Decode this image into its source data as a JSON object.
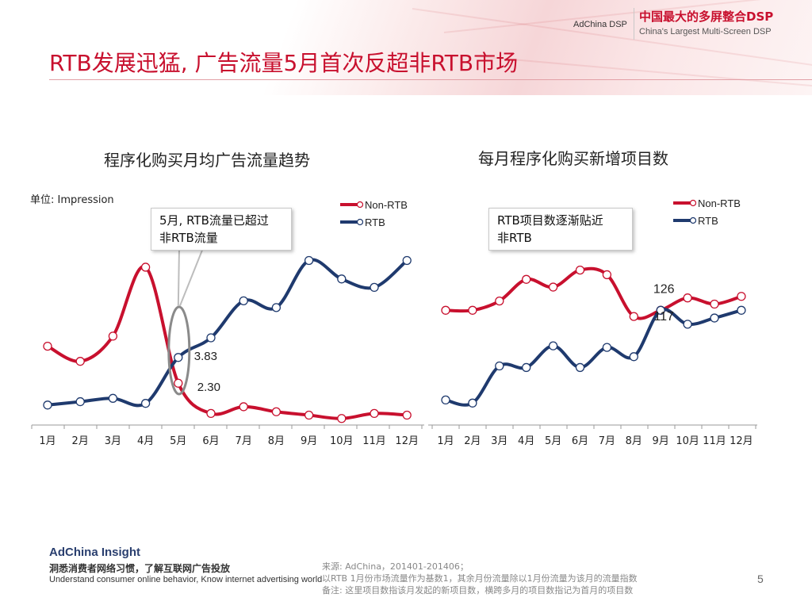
{
  "header": {
    "brand": "AdChina DSP",
    "tagline_cn": "中国最大的多屏整合DSP",
    "tagline_en": "China's Largest Multi-Screen DSP"
  },
  "title": "RTB发展迅猛, 广告流量5月首次反超非RTB市场",
  "footer": {
    "brand": "AdChina Insight",
    "slogan_cn": "洞悉消费者网络习惯，了解互联网广告投放",
    "slogan_en": "Understand consumer online behavior, Know internet advertising world",
    "source_lines": [
      "来源: AdChina，201401-201406；",
      "以RTB 1月份市场流量作为基数1，其余月份流量除以1月份流量为该月的流量指数",
      "备注: 这里项目数指该月发起的新项目数，横跨多月的项目数指记为首月的项目数"
    ],
    "page_number": "5"
  },
  "colors": {
    "non_rtb": "#c8102e",
    "rtb": "#1f3a6e",
    "accent": "#c8102e"
  },
  "chart_data": [
    {
      "type": "line",
      "title": "程序化购买月均广告流量趋势",
      "unit_label": "单位: Impression",
      "categories": [
        "1月",
        "2月",
        "3月",
        "4月",
        "5月",
        "6月",
        "7月",
        "8月",
        "9月",
        "10月",
        "11月",
        "12月"
      ],
      "series": [
        {
          "name": "Non-RTB",
          "color": "#c8102e",
          "values": [
            4.5,
            3.6,
            5.1,
            9.2,
            2.3,
            0.5,
            0.9,
            0.6,
            0.4,
            0.2,
            0.5,
            0.4
          ]
        },
        {
          "name": "RTB",
          "color": "#1f3a6e",
          "values": [
            1.0,
            1.2,
            1.4,
            1.1,
            3.83,
            5.0,
            7.2,
            6.8,
            9.6,
            8.5,
            8.0,
            9.6
          ]
        }
      ],
      "data_labels": [
        "3.83",
        "2.30"
      ],
      "ylim": [
        0,
        10
      ],
      "legend": "top-right",
      "callout": "5月, RTB流量已超过\n非RTB流量"
    },
    {
      "type": "line",
      "title": "每月程序化购买新增项目数",
      "categories": [
        "1月",
        "2月",
        "3月",
        "4月",
        "5月",
        "6月",
        "7月",
        "8月",
        "9月",
        "10月",
        "11月",
        "12月"
      ],
      "series": [
        {
          "name": "Non-RTB",
          "color": "#c8102e",
          "values": [
            126,
            126,
            132,
            146,
            141,
            152,
            149,
            122,
            126,
            134,
            130,
            135
          ]
        },
        {
          "name": "RTB",
          "color": "#1f3a6e",
          "values": [
            68,
            66,
            90,
            89,
            103,
            89,
            102,
            96,
            126,
            117,
            121,
            126
          ]
        }
      ],
      "data_labels": [
        "126",
        "117"
      ],
      "ylim": [
        60,
        160
      ],
      "legend": "top-right",
      "callout": "RTB项目数逐渐贴近\n非RTB"
    }
  ]
}
